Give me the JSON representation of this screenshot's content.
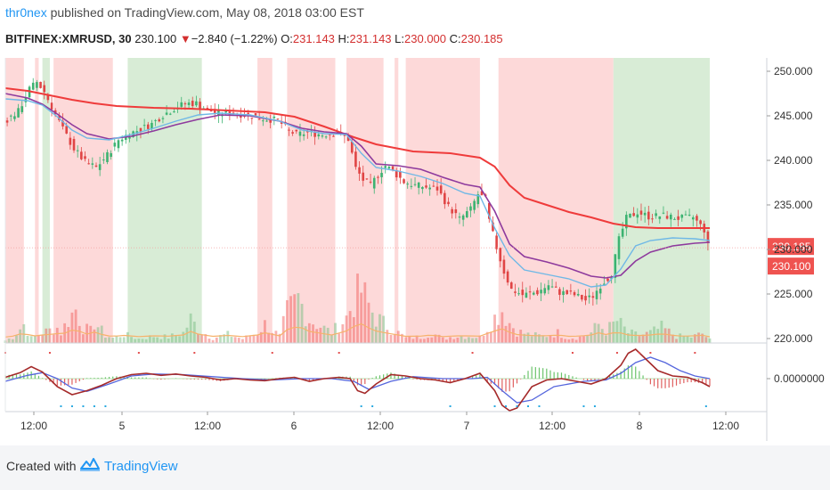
{
  "header": {
    "author": "thr0nex",
    "published_text": "published on TradingView.com, May 08, 2018 03:00 EST",
    "symbol": "BITFINEX:XMRUSD, 30",
    "last": "230.100",
    "change_arrow": "▼",
    "change": "−2.840 (−1.22%)",
    "open_label": "O:",
    "open": "231.143",
    "high_label": "H:",
    "high": "231.143",
    "low_label": "L:",
    "low": "230.000",
    "close_label": "C:",
    "close": "230.185"
  },
  "footer": {
    "created_with": "Created with",
    "brand": "TradingView",
    "logo_icon": "tradingview-cloud-icon"
  },
  "chart_data": {
    "type": "candlestick",
    "price_axis": {
      "ticks": [
        "250.000",
        "245.000",
        "240.000",
        "235.000",
        "230.000",
        "225.000",
        "220.000"
      ],
      "range": [
        219.5,
        251.5
      ],
      "markers": [
        {
          "value": 230.185,
          "label": "230.185",
          "color": "#ef5350"
        },
        {
          "value": 230.1,
          "label": "230.100",
          "color": "#ef5350"
        }
      ]
    },
    "time_axis": {
      "ticks": [
        "12:00",
        "5",
        "12:00",
        "6",
        "12:00",
        "7",
        "12:00",
        "8",
        "12:00"
      ]
    },
    "background_bands": [
      {
        "from": 0,
        "to": 5,
        "color": "red"
      },
      {
        "from": 8,
        "to": 9,
        "color": "red"
      },
      {
        "from": 10,
        "to": 12,
        "color": "green"
      },
      {
        "from": 13,
        "to": 29,
        "color": "red"
      },
      {
        "from": 33,
        "to": 53,
        "color": "green"
      },
      {
        "from": 68,
        "to": 72,
        "color": "red"
      },
      {
        "from": 76,
        "to": 89,
        "color": "red"
      },
      {
        "from": 92,
        "to": 102,
        "color": "red"
      },
      {
        "from": 105,
        "to": 106,
        "color": "red"
      },
      {
        "from": 108,
        "to": 128,
        "color": "red"
      },
      {
        "from": 133,
        "to": 164,
        "color": "red"
      },
      {
        "from": 164,
        "to": 190,
        "color": "green"
      }
    ],
    "price_path": [
      [
        0,
        244.3
      ],
      [
        4,
        245.5
      ],
      [
        7,
        248.0
      ],
      [
        9,
        248.8
      ],
      [
        11,
        247.7
      ],
      [
        13,
        246.0
      ],
      [
        16,
        243.5
      ],
      [
        19,
        241.3
      ],
      [
        22,
        239.8
      ],
      [
        25,
        239.2
      ],
      [
        28,
        240.6
      ],
      [
        31,
        242.3
      ],
      [
        34,
        243.0
      ],
      [
        37,
        243.5
      ],
      [
        40,
        244.1
      ],
      [
        43,
        245.1
      ],
      [
        46,
        245.8
      ],
      [
        49,
        246.4
      ],
      [
        52,
        246.4
      ],
      [
        55,
        245.7
      ],
      [
        58,
        245.2
      ],
      [
        62,
        245.3
      ],
      [
        66,
        245.1
      ],
      [
        70,
        244.7
      ],
      [
        74,
        244.5
      ],
      [
        77,
        243.3
      ],
      [
        79,
        242.9
      ],
      [
        82,
        243.1
      ],
      [
        86,
        242.9
      ],
      [
        90,
        243.1
      ],
      [
        93,
        242.4
      ],
      [
        95,
        239.1
      ],
      [
        97,
        237.8
      ],
      [
        99,
        237.2
      ],
      [
        101,
        238.4
      ],
      [
        103,
        239.4
      ],
      [
        105,
        238.8
      ],
      [
        108,
        237.6
      ],
      [
        111,
        237.2
      ],
      [
        114,
        237.0
      ],
      [
        117,
        236.8
      ],
      [
        120,
        234.8
      ],
      [
        123,
        233.4
      ],
      [
        126,
        234.5
      ],
      [
        128,
        236.2
      ],
      [
        130,
        235.6
      ],
      [
        131,
        233.2
      ],
      [
        133,
        230.2
      ],
      [
        135,
        227.5
      ],
      [
        137,
        225.5
      ],
      [
        140,
        224.9
      ],
      [
        144,
        225.2
      ],
      [
        147,
        226.0
      ],
      [
        150,
        225.2
      ],
      [
        154,
        224.9
      ],
      [
        157,
        224.3
      ],
      [
        159,
        224.8
      ],
      [
        161,
        226.0
      ],
      [
        164,
        227.2
      ],
      [
        166,
        231.1
      ],
      [
        168,
        233.5
      ],
      [
        171,
        234.2
      ],
      [
        174,
        233.7
      ],
      [
        178,
        233.8
      ],
      [
        182,
        233.5
      ],
      [
        186,
        233.6
      ],
      [
        189,
        232.2
      ],
      [
        190,
        230.4
      ]
    ],
    "ma_slow_path": [
      [
        0,
        248.1
      ],
      [
        6,
        247.8
      ],
      [
        12,
        247.3
      ],
      [
        18,
        246.8
      ],
      [
        24,
        246.4
      ],
      [
        30,
        246.1
      ],
      [
        40,
        245.9
      ],
      [
        50,
        245.8
      ],
      [
        60,
        245.6
      ],
      [
        70,
        245.4
      ],
      [
        78,
        244.9
      ],
      [
        86,
        243.8
      ],
      [
        94,
        242.6
      ],
      [
        100,
        241.8
      ],
      [
        110,
        241.0
      ],
      [
        120,
        240.8
      ],
      [
        128,
        240.3
      ],
      [
        132,
        239.3
      ],
      [
        136,
        237.2
      ],
      [
        140,
        235.8
      ],
      [
        146,
        235.0
      ],
      [
        152,
        234.2
      ],
      [
        158,
        233.6
      ],
      [
        164,
        232.9
      ],
      [
        170,
        232.5
      ],
      [
        176,
        232.4
      ],
      [
        182,
        232.4
      ],
      [
        190,
        232.4
      ]
    ],
    "ma_mid_path": [
      [
        0,
        247.5
      ],
      [
        6,
        247.0
      ],
      [
        10,
        246.3
      ],
      [
        14,
        245.2
      ],
      [
        18,
        244.0
      ],
      [
        22,
        243.0
      ],
      [
        28,
        242.4
      ],
      [
        34,
        242.7
      ],
      [
        40,
        243.3
      ],
      [
        46,
        244.0
      ],
      [
        52,
        244.6
      ],
      [
        58,
        245.1
      ],
      [
        66,
        245.0
      ],
      [
        74,
        244.4
      ],
      [
        80,
        243.6
      ],
      [
        86,
        243.2
      ],
      [
        92,
        243.0
      ],
      [
        96,
        241.6
      ],
      [
        100,
        239.6
      ],
      [
        106,
        239.4
      ],
      [
        112,
        239.0
      ],
      [
        118,
        238.1
      ],
      [
        124,
        237.3
      ],
      [
        128,
        237.0
      ],
      [
        132,
        234.3
      ],
      [
        136,
        230.6
      ],
      [
        140,
        229.2
      ],
      [
        146,
        228.6
      ],
      [
        152,
        227.9
      ],
      [
        158,
        227.0
      ],
      [
        162,
        226.8
      ],
      [
        166,
        227.1
      ],
      [
        170,
        228.7
      ],
      [
        174,
        229.7
      ],
      [
        180,
        230.4
      ],
      [
        186,
        230.7
      ],
      [
        190,
        230.8
      ]
    ],
    "ma_fast_path": [
      [
        0,
        246.9
      ],
      [
        6,
        246.7
      ],
      [
        10,
        246.2
      ],
      [
        14,
        244.9
      ],
      [
        18,
        243.4
      ],
      [
        22,
        242.5
      ],
      [
        28,
        242.3
      ],
      [
        34,
        242.9
      ],
      [
        40,
        243.6
      ],
      [
        46,
        244.4
      ],
      [
        52,
        245.1
      ],
      [
        58,
        245.3
      ],
      [
        66,
        245.1
      ],
      [
        74,
        244.4
      ],
      [
        80,
        243.4
      ],
      [
        86,
        243.0
      ],
      [
        92,
        242.9
      ],
      [
        96,
        240.8
      ],
      [
        100,
        239.2
      ],
      [
        106,
        238.8
      ],
      [
        112,
        238.2
      ],
      [
        118,
        237.4
      ],
      [
        124,
        236.3
      ],
      [
        128,
        236.0
      ],
      [
        132,
        232.4
      ],
      [
        136,
        229.3
      ],
      [
        140,
        227.7
      ],
      [
        146,
        227.2
      ],
      [
        152,
        226.7
      ],
      [
        158,
        225.8
      ],
      [
        162,
        226.0
      ],
      [
        166,
        227.8
      ],
      [
        170,
        230.4
      ],
      [
        174,
        231.0
      ],
      [
        180,
        231.3
      ],
      [
        186,
        231.2
      ],
      [
        190,
        231.0
      ]
    ],
    "volume_profile": [
      [
        0,
        3
      ],
      [
        2,
        7
      ],
      [
        3,
        12
      ],
      [
        5,
        22
      ],
      [
        7,
        6
      ],
      [
        10,
        12
      ],
      [
        14,
        18
      ],
      [
        15,
        12
      ],
      [
        17,
        28
      ],
      [
        19,
        40
      ],
      [
        21,
        18
      ],
      [
        23,
        14
      ],
      [
        24,
        25
      ],
      [
        27,
        9
      ],
      [
        29,
        6
      ],
      [
        32,
        10
      ],
      [
        36,
        5
      ],
      [
        40,
        8
      ],
      [
        44,
        7
      ],
      [
        48,
        12
      ],
      [
        50,
        28
      ],
      [
        52,
        16
      ],
      [
        56,
        6
      ],
      [
        60,
        10
      ],
      [
        64,
        5
      ],
      [
        68,
        12
      ],
      [
        70,
        22
      ],
      [
        74,
        8
      ],
      [
        76,
        36
      ],
      [
        79,
        52
      ],
      [
        82,
        28
      ],
      [
        85,
        20
      ],
      [
        88,
        12
      ],
      [
        92,
        30
      ],
      [
        94,
        50
      ],
      [
        96,
        62
      ],
      [
        98,
        44
      ],
      [
        100,
        30
      ],
      [
        103,
        20
      ],
      [
        106,
        12
      ],
      [
        108,
        6
      ],
      [
        112,
        7
      ],
      [
        115,
        12
      ],
      [
        118,
        5
      ],
      [
        121,
        8
      ],
      [
        125,
        8
      ],
      [
        128,
        7
      ],
      [
        131,
        25
      ],
      [
        134,
        40
      ],
      [
        136,
        24
      ],
      [
        138,
        14
      ],
      [
        141,
        10
      ],
      [
        145,
        8
      ],
      [
        149,
        12
      ],
      [
        152,
        6
      ],
      [
        155,
        7
      ],
      [
        158,
        12
      ],
      [
        160,
        22
      ],
      [
        162,
        14
      ],
      [
        165,
        26
      ],
      [
        168,
        12
      ],
      [
        171,
        9
      ],
      [
        174,
        12
      ],
      [
        177,
        18
      ],
      [
        181,
        8
      ],
      [
        185,
        7
      ],
      [
        188,
        11
      ],
      [
        190,
        4
      ]
    ],
    "oscillator": {
      "zero_label": "0.0000000",
      "line_path": [
        [
          0,
          0.1
        ],
        [
          4,
          0.45
        ],
        [
          7,
          0.9
        ],
        [
          10,
          0.5
        ],
        [
          14,
          -0.6
        ],
        [
          18,
          -1.2
        ],
        [
          22,
          -0.9
        ],
        [
          26,
          -0.5
        ],
        [
          30,
          0.0
        ],
        [
          34,
          0.3
        ],
        [
          38,
          0.4
        ],
        [
          42,
          0.25
        ],
        [
          46,
          0.35
        ],
        [
          50,
          0.2
        ],
        [
          54,
          0.1
        ],
        [
          58,
          -0.1
        ],
        [
          62,
          0.0
        ],
        [
          66,
          -0.1
        ],
        [
          70,
          -0.15
        ],
        [
          74,
          0.0
        ],
        [
          78,
          0.1
        ],
        [
          82,
          -0.2
        ],
        [
          86,
          0.0
        ],
        [
          90,
          0.1
        ],
        [
          93,
          0.0
        ],
        [
          95,
          -0.9
        ],
        [
          97,
          -1.1
        ],
        [
          100,
          -0.4
        ],
        [
          104,
          0.3
        ],
        [
          108,
          0.2
        ],
        [
          112,
          0.0
        ],
        [
          116,
          -0.1
        ],
        [
          120,
          -0.3
        ],
        [
          124,
          0.0
        ],
        [
          128,
          0.4
        ],
        [
          132,
          -0.9
        ],
        [
          134,
          -2.0
        ],
        [
          136,
          -2.4
        ],
        [
          138,
          -2.2
        ],
        [
          142,
          -0.6
        ],
        [
          146,
          -0.1
        ],
        [
          150,
          0.0
        ],
        [
          154,
          -0.2
        ],
        [
          158,
          -0.4
        ],
        [
          162,
          0.0
        ],
        [
          166,
          1.0
        ],
        [
          168,
          1.9
        ],
        [
          170,
          2.2
        ],
        [
          173,
          1.4
        ],
        [
          176,
          0.6
        ],
        [
          180,
          0.2
        ],
        [
          184,
          0.1
        ],
        [
          188,
          -0.3
        ],
        [
          190,
          -0.6
        ]
      ],
      "signal_path": [
        [
          0,
          -0.2
        ],
        [
          6,
          0.25
        ],
        [
          10,
          0.45
        ],
        [
          14,
          0.0
        ],
        [
          18,
          -0.7
        ],
        [
          22,
          -0.95
        ],
        [
          28,
          -0.4
        ],
        [
          34,
          0.2
        ],
        [
          40,
          0.35
        ],
        [
          48,
          0.3
        ],
        [
          56,
          0.15
        ],
        [
          64,
          0.0
        ],
        [
          72,
          -0.1
        ],
        [
          80,
          0.0
        ],
        [
          88,
          0.0
        ],
        [
          94,
          -0.2
        ],
        [
          98,
          -0.8
        ],
        [
          104,
          -0.2
        ],
        [
          110,
          0.15
        ],
        [
          118,
          0.0
        ],
        [
          126,
          0.0
        ],
        [
          130,
          0.1
        ],
        [
          134,
          -0.9
        ],
        [
          138,
          -1.8
        ],
        [
          142,
          -1.6
        ],
        [
          148,
          -0.6
        ],
        [
          156,
          -0.2
        ],
        [
          162,
          -0.1
        ],
        [
          166,
          0.4
        ],
        [
          170,
          1.2
        ],
        [
          174,
          1.6
        ],
        [
          178,
          1.2
        ],
        [
          182,
          0.6
        ],
        [
          186,
          0.2
        ],
        [
          190,
          0.0
        ]
      ]
    }
  }
}
